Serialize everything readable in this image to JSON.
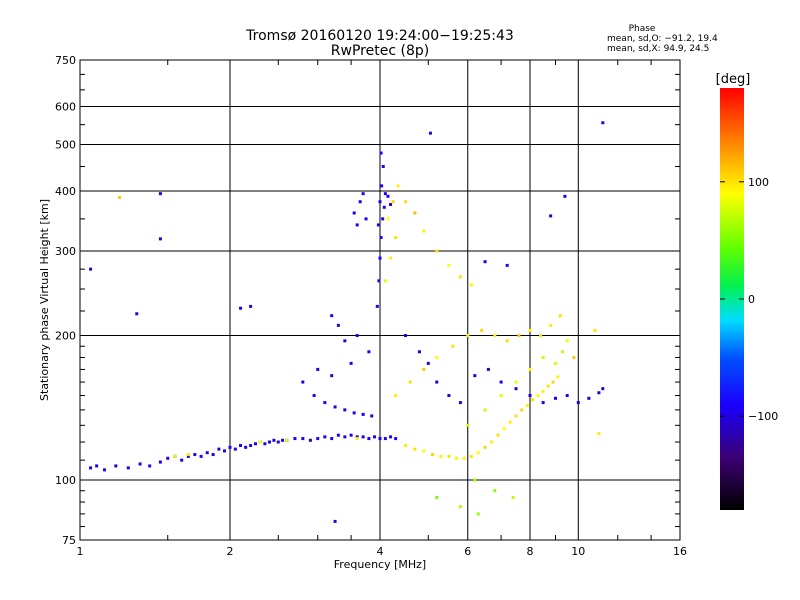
{
  "chart_data": {
    "type": "scatter",
    "title": "Tromsø 20160120 19:24:00−19:25:43",
    "subtitle": "RwPretec (8p)",
    "xlabel": "Frequency [MHz]",
    "ylabel": "Stationary phase Virtual Height [km]",
    "x_scale": "log",
    "y_scale": "log",
    "xlim": [
      1,
      16
    ],
    "ylim": [
      75,
      750
    ],
    "x_ticks": [
      1,
      2,
      4,
      6,
      8,
      10,
      16
    ],
    "x_tick_labels": [
      "1",
      "2",
      "4",
      "6",
      "8",
      "10",
      "16"
    ],
    "y_ticks": [
      75,
      100,
      200,
      300,
      400,
      500,
      600,
      750
    ],
    "y_tick_labels": [
      "75",
      "100",
      "200",
      "300",
      "400",
      "500",
      "600",
      "750"
    ],
    "grid": true,
    "stats": {
      "title": "Phase",
      "line1": "mean, sd,O: −91.2, 19.4",
      "line2": "mean, sd,X:  94.9, 24.5"
    },
    "colorbar": {
      "label": "[deg]",
      "range": [
        -180,
        180
      ],
      "ticks": [
        100,
        0,
        -100
      ],
      "tick_labels": [
        "100",
        "0",
        "−100"
      ]
    },
    "point_phase_color_scale": "rainbow: black(-180) purple blue(-100) cyan green(0) yellow(100) orange red(180)",
    "series": [
      {
        "name": "O-mode",
        "phase_mean": -91.2,
        "phase_sd": 19.4,
        "points": [
          [
            1.05,
            106,
            -95
          ],
          [
            1.08,
            107,
            -100
          ],
          [
            1.12,
            105,
            -90
          ],
          [
            1.18,
            107,
            -98
          ],
          [
            1.25,
            106,
            -92
          ],
          [
            1.32,
            108,
            -100
          ],
          [
            1.38,
            107,
            -85
          ],
          [
            1.45,
            109,
            -95
          ],
          [
            1.5,
            111,
            -100
          ],
          [
            1.55,
            112,
            -90
          ],
          [
            1.6,
            110,
            -105
          ],
          [
            1.65,
            112,
            -95
          ],
          [
            1.7,
            113,
            -100
          ],
          [
            1.75,
            112,
            -85
          ],
          [
            1.8,
            114,
            -95
          ],
          [
            1.85,
            113,
            -100
          ],
          [
            1.9,
            116,
            -92
          ],
          [
            1.95,
            115,
            -98
          ],
          [
            2.0,
            117,
            -100
          ],
          [
            2.05,
            116,
            -90
          ],
          [
            2.1,
            118,
            -95
          ],
          [
            2.15,
            117,
            -100
          ],
          [
            2.2,
            118,
            -85
          ],
          [
            2.25,
            119,
            -95
          ],
          [
            2.3,
            120,
            -100
          ],
          [
            2.35,
            119,
            -92
          ],
          [
            2.4,
            120,
            -98
          ],
          [
            2.45,
            121,
            -100
          ],
          [
            2.5,
            120,
            -88
          ],
          [
            2.55,
            121,
            -95
          ],
          [
            2.6,
            121,
            -100
          ],
          [
            2.7,
            122,
            -92
          ],
          [
            2.8,
            122,
            -98
          ],
          [
            2.9,
            121,
            -100
          ],
          [
            3.0,
            122,
            -90
          ],
          [
            3.1,
            123,
            -95
          ],
          [
            3.2,
            122,
            -100
          ],
          [
            3.3,
            124,
            -92
          ],
          [
            3.4,
            123,
            -98
          ],
          [
            3.5,
            124,
            -100
          ],
          [
            3.6,
            123,
            -88
          ],
          [
            3.7,
            123,
            -95
          ],
          [
            3.8,
            122,
            -100
          ],
          [
            3.9,
            123,
            -92
          ],
          [
            4.0,
            122,
            -98
          ],
          [
            4.1,
            122,
            -100
          ],
          [
            4.2,
            123,
            -95
          ],
          [
            4.3,
            122,
            -90
          ],
          [
            3.95,
            230,
            -95
          ],
          [
            3.98,
            260,
            -100
          ],
          [
            4.0,
            290,
            -92
          ],
          [
            4.02,
            320,
            -98
          ],
          [
            4.05,
            350,
            -100
          ],
          [
            4.0,
            380,
            -95
          ],
          [
            4.03,
            410,
            -90
          ],
          [
            4.06,
            450,
            -100
          ],
          [
            4.02,
            480,
            -95
          ],
          [
            3.97,
            340,
            -98
          ],
          [
            4.08,
            370,
            -100
          ],
          [
            4.1,
            395,
            -92
          ],
          [
            3.6,
            340,
            -95
          ],
          [
            3.55,
            360,
            -100
          ],
          [
            3.65,
            380,
            -90
          ],
          [
            3.7,
            395,
            -98
          ],
          [
            3.75,
            350,
            -100
          ],
          [
            4.15,
            390,
            -95
          ],
          [
            4.2,
            375,
            -100
          ],
          [
            2.8,
            160,
            -95
          ],
          [
            2.95,
            150,
            -100
          ],
          [
            3.1,
            145,
            -92
          ],
          [
            3.25,
            142,
            -98
          ],
          [
            3.4,
            140,
            -100
          ],
          [
            3.55,
            138,
            -90
          ],
          [
            3.7,
            137,
            -95
          ],
          [
            3.85,
            136,
            -100
          ],
          [
            3.0,
            170,
            -98
          ],
          [
            3.2,
            165,
            -100
          ],
          [
            3.5,
            175,
            -95
          ],
          [
            3.8,
            185,
            -92
          ],
          [
            3.6,
            200,
            -100
          ],
          [
            3.4,
            195,
            -98
          ],
          [
            3.3,
            210,
            -100
          ],
          [
            3.2,
            220,
            -92
          ],
          [
            4.5,
            200,
            -95
          ],
          [
            4.8,
            185,
            -100
          ],
          [
            5.0,
            175,
            -92
          ],
          [
            5.2,
            160,
            -98
          ],
          [
            5.5,
            150,
            -100
          ],
          [
            5.8,
            145,
            -90
          ],
          [
            6.2,
            165,
            -95
          ],
          [
            6.6,
            170,
            -100
          ],
          [
            7.0,
            160,
            -92
          ],
          [
            7.5,
            155,
            -98
          ],
          [
            8.0,
            150,
            -100
          ],
          [
            8.5,
            145,
            -95
          ],
          [
            9.0,
            148,
            -100
          ],
          [
            9.5,
            150,
            -92
          ],
          [
            10.0,
            145,
            -98
          ],
          [
            10.5,
            148,
            -100
          ],
          [
            11.0,
            152,
            -95
          ],
          [
            11.2,
            155,
            -100
          ],
          [
            2.1,
            228,
            -95
          ],
          [
            2.2,
            230,
            -100
          ],
          [
            1.45,
            395,
            -95
          ],
          [
            1.45,
            318,
            -100
          ],
          [
            1.05,
            275,
            -95
          ],
          [
            1.3,
            222,
            -100
          ],
          [
            3.25,
            82,
            -100
          ],
          [
            11.2,
            555,
            -95
          ],
          [
            5.05,
            528,
            -90
          ],
          [
            9.4,
            390,
            -100
          ],
          [
            8.8,
            355,
            -95
          ],
          [
            6.5,
            285,
            -100
          ],
          [
            7.2,
            280,
            -92
          ]
        ]
      },
      {
        "name": "X-mode",
        "phase_mean": 94.9,
        "phase_sd": 24.5,
        "points": [
          [
            4.5,
            118,
            95
          ],
          [
            4.7,
            116,
            100
          ],
          [
            4.9,
            115,
            90
          ],
          [
            5.1,
            113,
            105
          ],
          [
            5.3,
            112,
            95
          ],
          [
            5.5,
            112,
            100
          ],
          [
            5.7,
            111,
            85
          ],
          [
            5.9,
            111,
            95
          ],
          [
            6.1,
            112,
            100
          ],
          [
            6.3,
            114,
            90
          ],
          [
            6.5,
            117,
            105
          ],
          [
            6.7,
            120,
            95
          ],
          [
            6.9,
            124,
            100
          ],
          [
            7.1,
            128,
            90
          ],
          [
            7.3,
            132,
            95
          ],
          [
            7.5,
            136,
            100
          ],
          [
            7.7,
            140,
            105
          ],
          [
            7.9,
            143,
            95
          ],
          [
            8.1,
            147,
            100
          ],
          [
            8.3,
            150,
            90
          ],
          [
            8.5,
            153,
            95
          ],
          [
            8.7,
            157,
            100
          ],
          [
            8.9,
            160,
            105
          ],
          [
            9.1,
            164,
            95
          ],
          [
            4.3,
            150,
            95
          ],
          [
            4.6,
            160,
            100
          ],
          [
            4.9,
            170,
            110
          ],
          [
            5.2,
            180,
            90
          ],
          [
            5.6,
            190,
            100
          ],
          [
            6.0,
            200,
            95
          ],
          [
            6.4,
            205,
            105
          ],
          [
            6.8,
            200,
            95
          ],
          [
            7.2,
            195,
            100
          ],
          [
            7.6,
            200,
            110
          ],
          [
            8.0,
            205,
            95
          ],
          [
            8.4,
            200,
            100
          ],
          [
            8.8,
            210,
            95
          ],
          [
            9.2,
            220,
            100
          ],
          [
            4.1,
            260,
            80
          ],
          [
            4.2,
            290,
            95
          ],
          [
            4.3,
            320,
            100
          ],
          [
            4.15,
            350,
            90
          ],
          [
            4.25,
            380,
            105
          ],
          [
            4.35,
            410,
            95
          ],
          [
            4.5,
            380,
            100
          ],
          [
            4.7,
            360,
            115
          ],
          [
            4.9,
            330,
            95
          ],
          [
            5.2,
            300,
            100
          ],
          [
            5.5,
            280,
            90
          ],
          [
            5.8,
            265,
            100
          ],
          [
            6.1,
            255,
            95
          ],
          [
            6.0,
            130,
            70
          ],
          [
            6.5,
            140,
            75
          ],
          [
            7.0,
            150,
            80
          ],
          [
            7.5,
            160,
            85
          ],
          [
            8.0,
            170,
            90
          ],
          [
            8.5,
            180,
            75
          ],
          [
            9.0,
            175,
            80
          ],
          [
            9.3,
            185,
            70
          ],
          [
            9.5,
            195,
            85
          ],
          [
            6.2,
            100,
            60
          ],
          [
            6.8,
            95,
            55
          ],
          [
            7.4,
            92,
            70
          ],
          [
            5.2,
            92,
            50
          ],
          [
            5.8,
            88,
            65
          ],
          [
            6.3,
            85,
            60
          ],
          [
            1.55,
            112,
            95
          ],
          [
            1.65,
            113,
            100
          ],
          [
            2.3,
            120,
            90
          ],
          [
            2.6,
            121,
            80
          ],
          [
            3.6,
            122,
            95
          ],
          [
            1.2,
            388,
            110
          ],
          [
            10.8,
            205,
            100
          ],
          [
            11.0,
            125,
            95
          ],
          [
            9.8,
            180,
            110
          ]
        ]
      }
    ]
  }
}
